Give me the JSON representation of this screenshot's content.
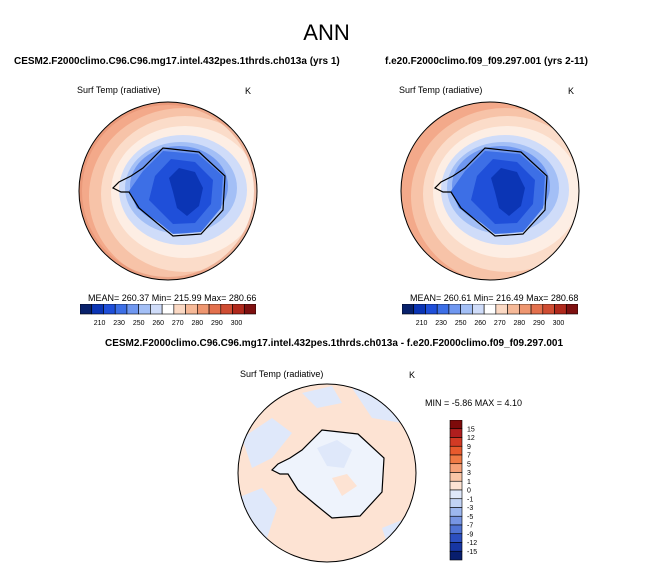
{
  "figure_title": "ANN",
  "panels": [
    {
      "title": "CESM2.F2000climo.C96.C96.mg17.intel.432pes.1thrds.ch013a (yrs 1)",
      "variable": "Surf Temp (radiative)",
      "units": "K",
      "stats": "MEAN= 260.37  Min= 215.99  Max= 280.66"
    },
    {
      "title": "f.e20.F2000climo.f09_f09.297.001 (yrs 2-11)",
      "variable": "Surf Temp (radiative)",
      "units": "K",
      "stats": "MEAN= 260.61  Min= 216.49  Max= 280.68"
    },
    {
      "title": "CESM2.F2000climo.C96.C96.mg17.intel.432pes.1thrds.ch013a - f.e20.F2000climo.f09_f09.297.001",
      "variable": "Surf Temp (radiative)",
      "units": "K",
      "stats": "MIN =  -5.86  MAX =   4.10"
    }
  ],
  "colorbar_abs": {
    "labels": [
      "210",
      "230",
      "250",
      "260",
      "270",
      "280",
      "290",
      "300"
    ],
    "colors": [
      "#08216b",
      "#0b35b5",
      "#1f4fd9",
      "#3d6fe6",
      "#6f97f0",
      "#a3bff6",
      "#cfdcf9",
      "#ffffff",
      "#fbd9c4",
      "#f6b998",
      "#ee9670",
      "#e3704d",
      "#cf4d33",
      "#b0291c",
      "#7e1010"
    ]
  },
  "colorbar_diff": {
    "labels": [
      "15",
      "12",
      "9",
      "7",
      "5",
      "3",
      "1",
      "0",
      "-1",
      "-3",
      "-5",
      "-7",
      "-9",
      "-12",
      "-15"
    ],
    "colors": [
      "#7e0a0a",
      "#b01e1e",
      "#d23a24",
      "#e85a2d",
      "#f07a45",
      "#f6a178",
      "#fac6a6",
      "#fde3d3",
      "#dfe8fa",
      "#c2d3f5",
      "#9db7ef",
      "#7795e3",
      "#5073d4",
      "#2c4fc0",
      "#1736a3",
      "#081e6e"
    ]
  }
}
